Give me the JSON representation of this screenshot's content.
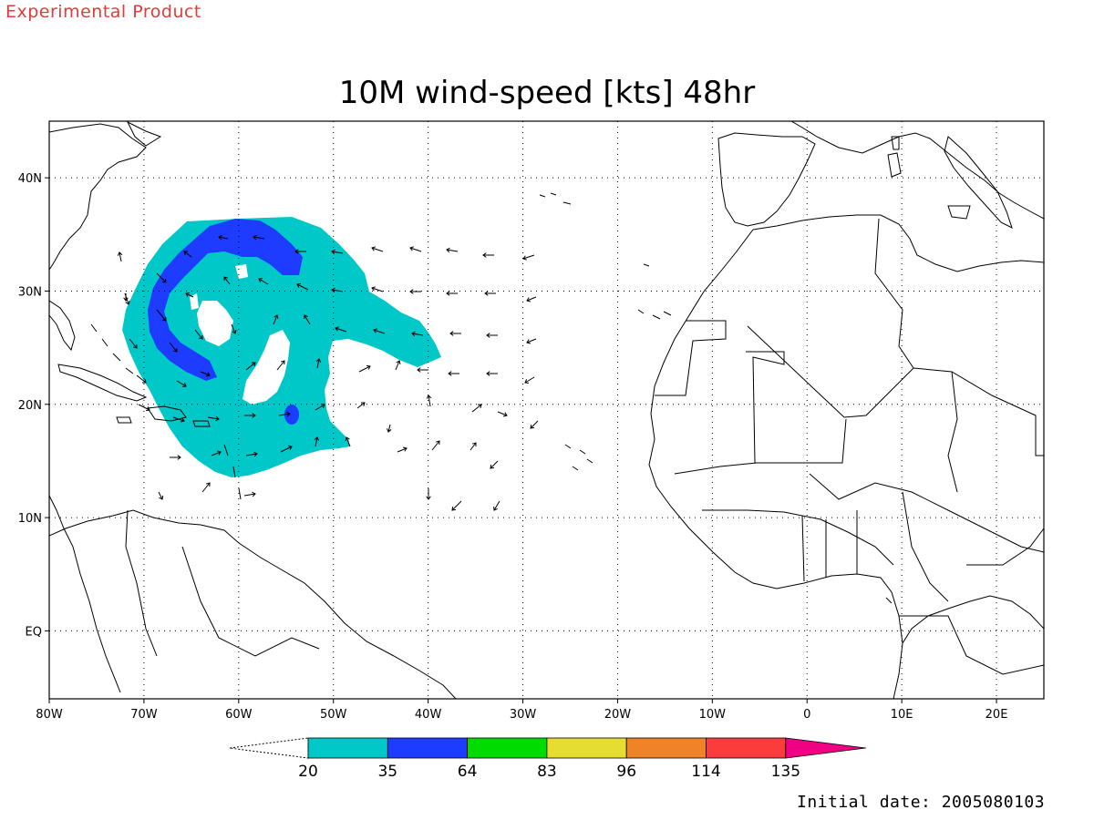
{
  "header": {
    "banner": "Experimental Product",
    "title": "10M wind-speed [kts] 48hr"
  },
  "footer": {
    "initial_date": "Initial date: 2005080103"
  },
  "map": {
    "projection": "lat-lon",
    "lon_range": [
      -80,
      25
    ],
    "lat_range": [
      -6,
      45
    ],
    "lon_ticks": [
      "80W",
      "70W",
      "60W",
      "50W",
      "40W",
      "30W",
      "20W",
      "10W",
      "0",
      "10E",
      "20E"
    ],
    "lat_ticks": [
      "40N",
      "30N",
      "20N",
      "10N",
      "EQ"
    ],
    "grid": "dotted",
    "wind_field": {
      "units": "kts",
      "shading": [
        {
          "range": "20-35",
          "color": "#00c8c8"
        },
        {
          "range": "35-64",
          "color": "#1e3cff"
        }
      ]
    }
  },
  "colorbar": {
    "labels": [
      "20",
      "35",
      "64",
      "83",
      "96",
      "114",
      "135"
    ],
    "colors": [
      "#00c8c8",
      "#1e3cff",
      "#00dc00",
      "#e6dc32",
      "#f08228",
      "#fa3c3c",
      "#f00082"
    ]
  }
}
